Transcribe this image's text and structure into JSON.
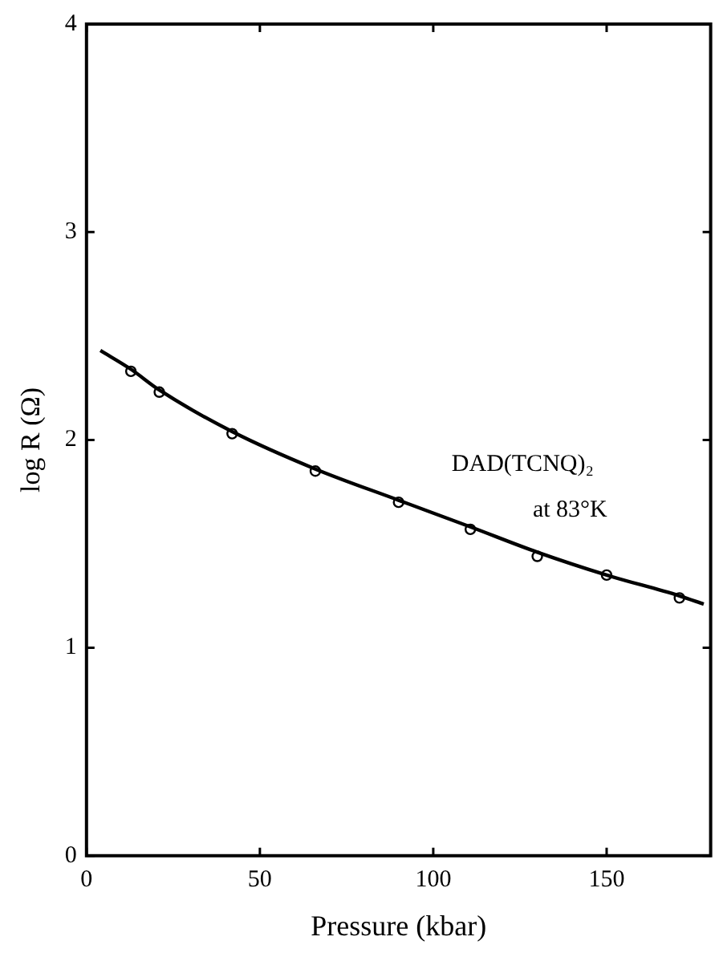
{
  "chart_data": {
    "type": "scatter",
    "xlabel": "Pressure (kbar)",
    "ylabel": "log R (Ω)",
    "xlim": [
      0,
      180
    ],
    "xticks": [
      0,
      50,
      100,
      150
    ],
    "ylim": [
      0,
      4
    ],
    "yticks": [
      0,
      1,
      2,
      3,
      4
    ],
    "grid": false,
    "legend": false,
    "series": [
      {
        "type": "line",
        "color": "#000000",
        "marker": "none",
        "line_style": "solid",
        "x": [
          4,
          12.8,
          21,
          42,
          66,
          90,
          111,
          130,
          150,
          171,
          178
        ],
        "values": [
          2.43,
          2.34,
          2.24,
          2.04,
          1.86,
          1.71,
          1.58,
          1.46,
          1.35,
          1.25,
          1.21
        ]
      },
      {
        "type": "scatter",
        "color": "#000000",
        "marker": "circle",
        "x": [
          12.8,
          21,
          42,
          66,
          90,
          110.7,
          130,
          150,
          171
        ],
        "values": [
          2.33,
          2.23,
          2.03,
          1.85,
          1.7,
          1.57,
          1.44,
          1.35,
          1.24
        ]
      }
    ],
    "annotations": [
      "DAD(TCNQ)₂",
      "at 83°K"
    ]
  }
}
